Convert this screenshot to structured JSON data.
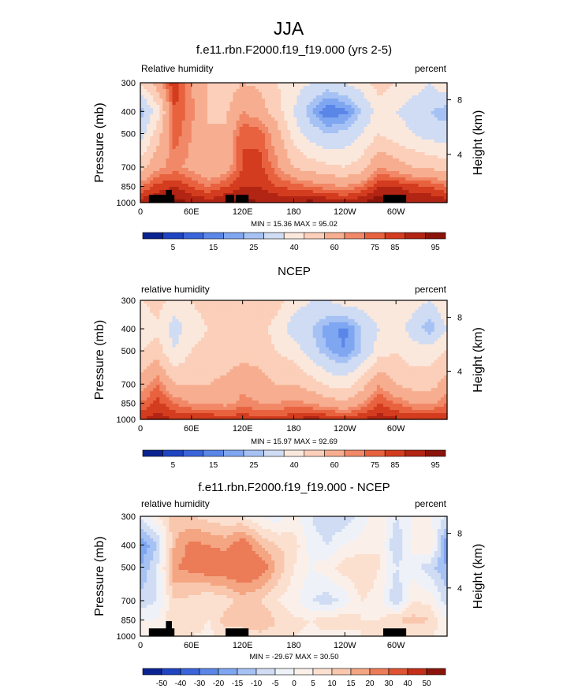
{
  "figure": {
    "title": "JJA"
  },
  "colors": {
    "palette_abs": [
      "#0a2391",
      "#1f44c2",
      "#3a64da",
      "#5a86e8",
      "#7fa6f1",
      "#a6c2f4",
      "#cfdcf3",
      "#fbe8dd",
      "#fbcfb9",
      "#f7ae90",
      "#f18867",
      "#e8623f",
      "#d33c1e",
      "#b22413",
      "#8a1409"
    ],
    "palette_diff": [
      "#0a2391",
      "#1f44c2",
      "#3a64da",
      "#5a86e8",
      "#7fa6f1",
      "#a6c2f4",
      "#cfdcf3",
      "#eef2f8",
      "#fbf0e9",
      "#fbe0d0",
      "#f9c7ad",
      "#f4a582",
      "#ec7b57",
      "#df5332",
      "#c32f18",
      "#8a1409"
    ],
    "land": "#000000"
  },
  "chart_data": [
    {
      "type": "heatmap",
      "subtitle": "f.e11.rbn.F2000.f19_f19.000 (yrs 2-5)",
      "left_label": "Relative humidity",
      "right_label": "percent",
      "xlabel": "",
      "ylabel": "Pressure (mb)",
      "y2label": "Height (km)",
      "x_ticks": [
        "0",
        "60E",
        "120E",
        "180",
        "120W",
        "60W"
      ],
      "x_tick_lons": [
        0,
        60,
        120,
        180,
        240,
        300
      ],
      "xlim": [
        0,
        360
      ],
      "y_ticks": [
        "300",
        "400",
        "500",
        "700",
        "850",
        "1000"
      ],
      "y_tick_values": [
        300,
        400,
        500,
        700,
        850,
        1000
      ],
      "ylim": [
        1000,
        300
      ],
      "y_scale": "log-pressure",
      "y2_ticks": [
        "8",
        "4"
      ],
      "y2_tick_values": [
        356,
        616
      ],
      "minmax": "MIN = 15.36 MAX = 95.02",
      "min": 15.36,
      "max": 95.02,
      "colorbar": {
        "labels": [
          "5",
          "15",
          "25",
          "40",
          "60",
          "75",
          "85",
          "95"
        ],
        "label_slots": [
          1,
          3,
          5,
          7,
          9,
          11,
          12,
          14
        ],
        "palette": "abs"
      },
      "lon": [
        0,
        20,
        40,
        60,
        80,
        100,
        120,
        140,
        160,
        180,
        200,
        220,
        240,
        260,
        280,
        300,
        320,
        340,
        360
      ],
      "lev": [
        300,
        400,
        500,
        700,
        850,
        1000
      ],
      "values": [
        [
          50,
          65,
          85,
          70,
          60,
          55,
          60,
          58,
          50,
          45,
          40,
          35,
          40,
          45,
          55,
          50,
          45,
          40,
          50
        ],
        [
          25,
          45,
          80,
          72,
          60,
          58,
          70,
          65,
          55,
          40,
          25,
          15,
          18,
          30,
          45,
          40,
          35,
          30,
          25
        ],
        [
          35,
          55,
          78,
          70,
          60,
          62,
          80,
          78,
          65,
          45,
          35,
          30,
          32,
          40,
          50,
          45,
          40,
          35,
          35
        ],
        [
          55,
          68,
          72,
          68,
          60,
          65,
          80,
          82,
          72,
          60,
          55,
          52,
          50,
          55,
          70,
          65,
          60,
          58,
          55
        ],
        [
          75,
          82,
          85,
          80,
          75,
          80,
          85,
          85,
          80,
          78,
          75,
          72,
          70,
          75,
          85,
          85,
          82,
          80,
          75
        ],
        [
          88,
          90,
          92,
          90,
          88,
          90,
          92,
          90,
          90,
          90,
          92,
          90,
          88,
          90,
          95,
          92,
          90,
          90,
          88
        ]
      ],
      "land": [
        {
          "lon0": 10,
          "lon1": 40,
          "lev": 925
        },
        {
          "lon0": 30,
          "lon1": 37,
          "lev": 880
        },
        {
          "lon0": 100,
          "lon1": 110,
          "lev": 925
        },
        {
          "lon0": 112,
          "lon1": 127,
          "lev": 925
        },
        {
          "lon0": 285,
          "lon1": 312,
          "lev": 925
        }
      ]
    },
    {
      "type": "heatmap",
      "subtitle": "NCEP",
      "left_label": "relative humidity",
      "right_label": "percent",
      "xlabel": "",
      "ylabel": "Pressure (mb)",
      "y2label": "Height (km)",
      "x_ticks": [
        "0",
        "60E",
        "120E",
        "180",
        "120W",
        "60W"
      ],
      "x_tick_lons": [
        0,
        60,
        120,
        180,
        240,
        300
      ],
      "xlim": [
        0,
        360
      ],
      "y_ticks": [
        "300",
        "400",
        "500",
        "700",
        "850",
        "1000"
      ],
      "y_tick_values": [
        300,
        400,
        500,
        700,
        850,
        1000
      ],
      "ylim": [
        1000,
        300
      ],
      "y_scale": "log-pressure",
      "y2_ticks": [
        "8",
        "4"
      ],
      "y2_tick_values": [
        356,
        616
      ],
      "minmax": "MIN = 15.97 MAX = 92.69",
      "min": 15.97,
      "max": 92.69,
      "colorbar": {
        "labels": [
          "5",
          "15",
          "25",
          "40",
          "60",
          "75",
          "85",
          "95"
        ],
        "label_slots": [
          1,
          3,
          5,
          7,
          9,
          11,
          12,
          14
        ],
        "palette": "abs"
      },
      "lon": [
        0,
        20,
        40,
        60,
        80,
        100,
        120,
        140,
        160,
        180,
        200,
        220,
        240,
        260,
        280,
        300,
        320,
        340,
        360
      ],
      "lev": [
        300,
        400,
        500,
        700,
        850,
        1000
      ],
      "values": [
        [
          50,
          55,
          45,
          50,
          55,
          50,
          55,
          60,
          55,
          45,
          40,
          40,
          45,
          45,
          50,
          50,
          45,
          40,
          50
        ],
        [
          40,
          48,
          35,
          45,
          50,
          50,
          55,
          55,
          45,
          35,
          30,
          22,
          18,
          30,
          40,
          45,
          35,
          25,
          40
        ],
        [
          50,
          55,
          40,
          50,
          55,
          55,
          55,
          55,
          50,
          45,
          35,
          25,
          20,
          30,
          45,
          50,
          45,
          45,
          50
        ],
        [
          65,
          75,
          60,
          60,
          60,
          62,
          68,
          65,
          60,
          60,
          55,
          48,
          45,
          55,
          70,
          60,
          55,
          55,
          65
        ],
        [
          75,
          82,
          75,
          70,
          70,
          68,
          72,
          70,
          70,
          72,
          70,
          65,
          62,
          70,
          80,
          75,
          70,
          68,
          75
        ],
        [
          85,
          88,
          85,
          85,
          85,
          82,
          85,
          82,
          82,
          85,
          88,
          86,
          85,
          85,
          88,
          86,
          85,
          85,
          85
        ]
      ],
      "land": []
    },
    {
      "type": "heatmap",
      "subtitle": "f.e11.rbn.F2000.f19_f19.000 - NCEP",
      "left_label": "relative humidity",
      "right_label": "percent",
      "xlabel": "",
      "ylabel": "Pressure (mb)",
      "y2label": "Height (km)",
      "x_ticks": [
        "0",
        "60E",
        "120E",
        "180",
        "120W",
        "60W"
      ],
      "x_tick_lons": [
        0,
        60,
        120,
        180,
        240,
        300
      ],
      "xlim": [
        0,
        360
      ],
      "y_ticks": [
        "300",
        "400",
        "500",
        "700",
        "850",
        "1000"
      ],
      "y_tick_values": [
        300,
        400,
        500,
        700,
        850,
        1000
      ],
      "ylim": [
        1000,
        300
      ],
      "y_scale": "log-pressure",
      "y2_ticks": [
        "8",
        "4"
      ],
      "y2_tick_values": [
        356,
        616
      ],
      "minmax": "MIN = -29.67 MAX = 30.50",
      "min": -29.67,
      "max": 30.5,
      "colorbar": {
        "labels": [
          "-50",
          "-40",
          "-30",
          "-20",
          "-15",
          "-10",
          "-5",
          "0",
          "5",
          "10",
          "15",
          "20",
          "30",
          "40",
          "50"
        ],
        "label_slots": [
          1,
          2,
          3,
          4,
          5,
          6,
          7,
          8,
          9,
          10,
          11,
          12,
          13,
          14,
          15
        ],
        "palette": "diff"
      },
      "lon": [
        0,
        20,
        40,
        60,
        80,
        100,
        120,
        140,
        160,
        180,
        200,
        220,
        240,
        260,
        280,
        300,
        320,
        340,
        360
      ],
      "lev": [
        300,
        400,
        500,
        700,
        850,
        1000
      ],
      "values": [
        [
          -5,
          5,
          12,
          10,
          8,
          6,
          5,
          0,
          -3,
          2,
          -5,
          -10,
          -8,
          -3,
          5,
          -5,
          0,
          0,
          -5
        ],
        [
          -20,
          -10,
          15,
          22,
          20,
          18,
          25,
          15,
          10,
          8,
          -2,
          -5,
          0,
          2,
          5,
          -10,
          2,
          5,
          -20
        ],
        [
          -15,
          -5,
          20,
          22,
          25,
          25,
          28,
          25,
          15,
          5,
          0,
          3,
          8,
          10,
          5,
          -5,
          -3,
          -8,
          -15
        ],
        [
          -8,
          -5,
          10,
          8,
          5,
          8,
          12,
          10,
          5,
          2,
          -5,
          -8,
          -3,
          5,
          3,
          -10,
          5,
          3,
          -8
        ],
        [
          0,
          0,
          10,
          10,
          5,
          12,
          13,
          15,
          10,
          6,
          5,
          7,
          8,
          5,
          5,
          10,
          12,
          10,
          0
        ],
        [
          3,
          2,
          7,
          5,
          3,
          8,
          7,
          8,
          8,
          5,
          4,
          4,
          3,
          5,
          7,
          6,
          5,
          5,
          3
        ]
      ],
      "land": [
        {
          "lon0": 10,
          "lon1": 40,
          "lev": 925
        },
        {
          "lon0": 30,
          "lon1": 37,
          "lev": 860
        },
        {
          "lon0": 100,
          "lon1": 127,
          "lev": 925
        },
        {
          "lon0": 285,
          "lon1": 312,
          "lev": 925
        }
      ]
    }
  ]
}
